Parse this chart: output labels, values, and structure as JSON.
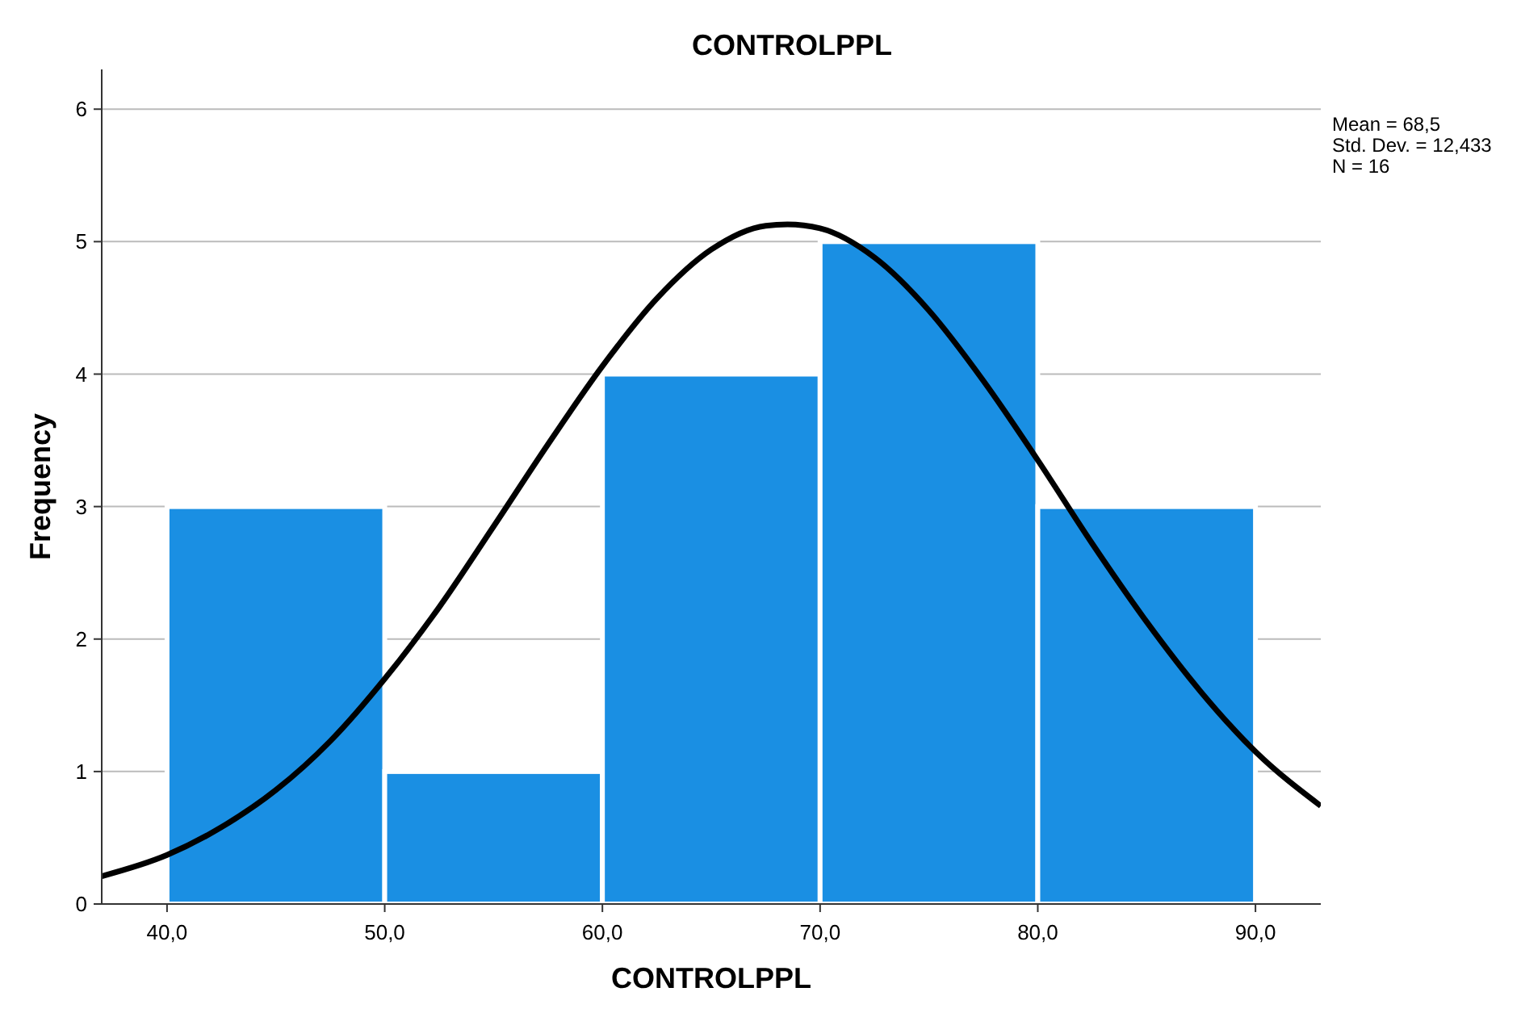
{
  "chart_data": {
    "type": "histogram",
    "title": "CONTROLPPL",
    "xlabel": "CONTROLPPL",
    "ylabel": "Frequency",
    "bins": [
      40,
      50,
      60,
      70,
      80,
      90
    ],
    "values": [
      3,
      1,
      4,
      5,
      3
    ],
    "color": "#1a8fe3",
    "xlim": [
      37,
      93
    ],
    "xticks": [
      {
        "value": 40,
        "label": "40,0"
      },
      {
        "value": 50,
        "label": "50,0"
      },
      {
        "value": 60,
        "label": "60,0"
      },
      {
        "value": 70,
        "label": "70,0"
      },
      {
        "value": 80,
        "label": "80,0"
      },
      {
        "value": 90,
        "label": "90,0"
      }
    ],
    "ylim": [
      0,
      6.3
    ],
    "yticks": [
      0,
      1,
      2,
      3,
      4,
      5,
      6
    ],
    "grid": "y",
    "series": [
      {
        "type": "line",
        "color": "#000000",
        "x": [
          37,
          40,
          42.5,
          45,
          47.5,
          50,
          52.5,
          55,
          57.5,
          60,
          62.5,
          65,
          67.5,
          68.5,
          70,
          72.5,
          75,
          77.5,
          80,
          82.5,
          85,
          87.5,
          90,
          93
        ],
        "values": [
          0.21,
          0.37,
          0.58,
          0.86,
          1.23,
          1.7,
          2.24,
          2.85,
          3.47,
          4.06,
          4.57,
          4.94,
          5.12,
          5.13,
          5.1,
          4.88,
          4.48,
          3.95,
          3.35,
          2.72,
          2.13,
          1.6,
          1.15,
          0.74
        ]
      }
    ],
    "annotations": [
      "Mean = 68,5",
      "Std. Dev. = 12,433",
      "N = 16"
    ]
  }
}
